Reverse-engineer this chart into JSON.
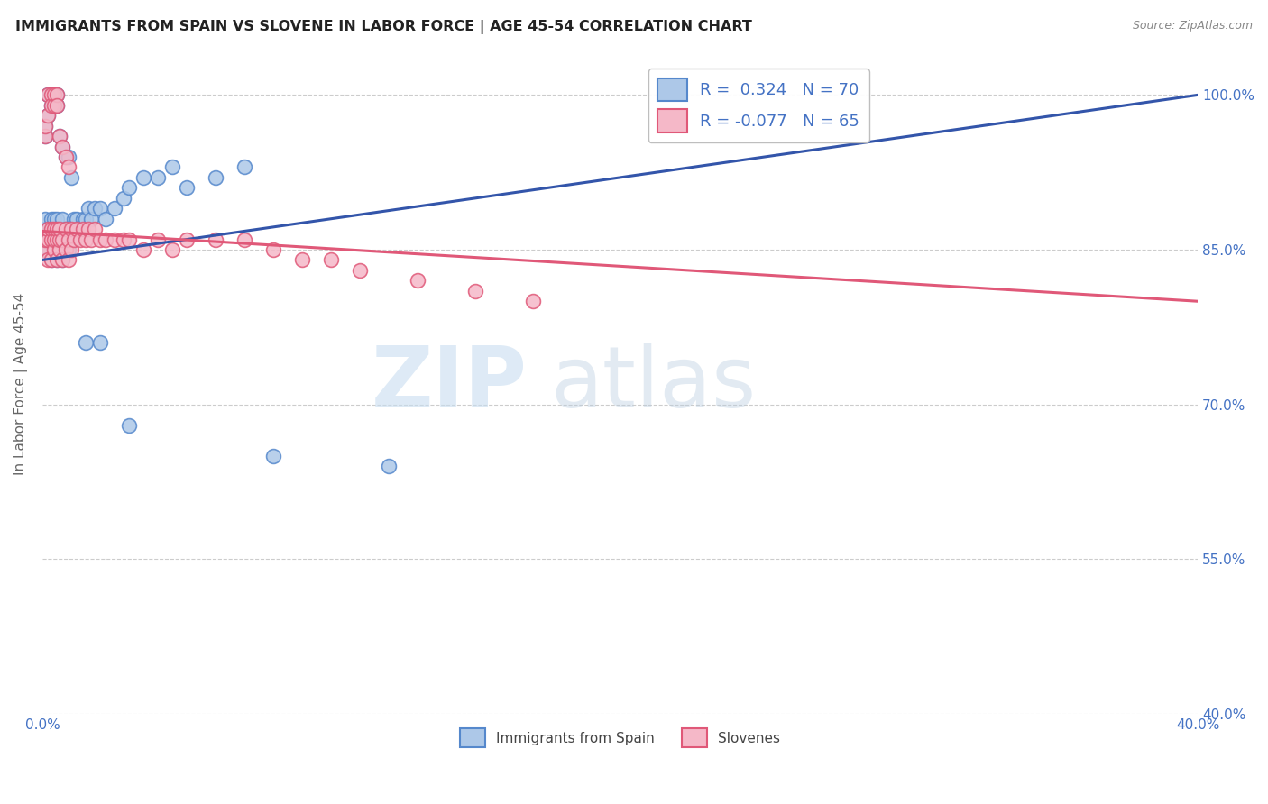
{
  "title": "IMMIGRANTS FROM SPAIN VS SLOVENE IN LABOR FORCE | AGE 45-54 CORRELATION CHART",
  "source": "Source: ZipAtlas.com",
  "ylabel": "In Labor Force | Age 45-54",
  "xlim": [
    0.0,
    0.4
  ],
  "ylim": [
    0.4,
    1.04
  ],
  "yticks": [
    0.4,
    0.55,
    0.7,
    0.85,
    1.0
  ],
  "yticklabels": [
    "40.0%",
    "55.0%",
    "70.0%",
    "85.0%",
    "100.0%"
  ],
  "grid_color": "#cccccc",
  "background_color": "#ffffff",
  "series1_color": "#adc8e8",
  "series2_color": "#f5b8c8",
  "series1_edge": "#5588cc",
  "series2_edge": "#e05878",
  "line1_color": "#3355aa",
  "line2_color": "#e05878",
  "legend_label1": "Immigrants from Spain",
  "legend_label2": "Slovenes",
  "R1": 0.324,
  "N1": 70,
  "R2": -0.077,
  "N2": 65,
  "watermark_zip": "ZIP",
  "watermark_atlas": "atlas",
  "spain_x": [
    0.001,
    0.001,
    0.001,
    0.001,
    0.002,
    0.002,
    0.002,
    0.003,
    0.003,
    0.003,
    0.003,
    0.004,
    0.004,
    0.004,
    0.005,
    0.005,
    0.005,
    0.005,
    0.006,
    0.006,
    0.006,
    0.007,
    0.007,
    0.007,
    0.008,
    0.008,
    0.009,
    0.009,
    0.01,
    0.01,
    0.011,
    0.012,
    0.012,
    0.013,
    0.014,
    0.015,
    0.016,
    0.017,
    0.018,
    0.02,
    0.022,
    0.025,
    0.028,
    0.03,
    0.035,
    0.04,
    0.045,
    0.05,
    0.06,
    0.07,
    0.001,
    0.001,
    0.002,
    0.002,
    0.003,
    0.003,
    0.004,
    0.004,
    0.005,
    0.005,
    0.006,
    0.007,
    0.008,
    0.009,
    0.01,
    0.015,
    0.02,
    0.03,
    0.08,
    0.12
  ],
  "spain_y": [
    0.85,
    0.86,
    0.87,
    0.88,
    0.85,
    0.86,
    0.87,
    0.84,
    0.86,
    0.87,
    0.88,
    0.85,
    0.87,
    0.88,
    0.84,
    0.86,
    0.87,
    0.88,
    0.85,
    0.86,
    0.87,
    0.84,
    0.86,
    0.88,
    0.86,
    0.87,
    0.85,
    0.87,
    0.86,
    0.87,
    0.88,
    0.87,
    0.88,
    0.87,
    0.88,
    0.88,
    0.89,
    0.88,
    0.89,
    0.89,
    0.88,
    0.89,
    0.9,
    0.91,
    0.92,
    0.92,
    0.93,
    0.91,
    0.92,
    0.93,
    0.96,
    0.97,
    0.98,
    1.0,
    1.0,
    0.99,
    1.0,
    0.99,
    1.0,
    0.99,
    0.96,
    0.95,
    0.94,
    0.94,
    0.92,
    0.76,
    0.76,
    0.68,
    0.65,
    0.64
  ],
  "slovene_x": [
    0.001,
    0.001,
    0.002,
    0.002,
    0.002,
    0.003,
    0.003,
    0.003,
    0.004,
    0.004,
    0.004,
    0.005,
    0.005,
    0.005,
    0.006,
    0.006,
    0.006,
    0.007,
    0.007,
    0.008,
    0.008,
    0.009,
    0.009,
    0.01,
    0.01,
    0.011,
    0.012,
    0.013,
    0.014,
    0.015,
    0.016,
    0.017,
    0.018,
    0.02,
    0.022,
    0.025,
    0.028,
    0.03,
    0.035,
    0.04,
    0.045,
    0.05,
    0.06,
    0.07,
    0.08,
    0.09,
    0.1,
    0.11,
    0.13,
    0.15,
    0.001,
    0.001,
    0.002,
    0.002,
    0.003,
    0.003,
    0.004,
    0.004,
    0.005,
    0.005,
    0.006,
    0.007,
    0.008,
    0.009,
    0.17
  ],
  "slovene_y": [
    0.85,
    0.86,
    0.84,
    0.86,
    0.87,
    0.84,
    0.86,
    0.87,
    0.85,
    0.86,
    0.87,
    0.84,
    0.86,
    0.87,
    0.85,
    0.86,
    0.87,
    0.84,
    0.86,
    0.85,
    0.87,
    0.84,
    0.86,
    0.85,
    0.87,
    0.86,
    0.87,
    0.86,
    0.87,
    0.86,
    0.87,
    0.86,
    0.87,
    0.86,
    0.86,
    0.86,
    0.86,
    0.86,
    0.85,
    0.86,
    0.85,
    0.86,
    0.86,
    0.86,
    0.85,
    0.84,
    0.84,
    0.83,
    0.82,
    0.81,
    0.96,
    0.97,
    0.98,
    1.0,
    1.0,
    0.99,
    1.0,
    0.99,
    1.0,
    0.99,
    0.96,
    0.95,
    0.94,
    0.93,
    0.8
  ],
  "line1_x0": 0.0,
  "line1_y0": 0.84,
  "line1_x1": 0.4,
  "line1_y1": 1.0,
  "line2_x0": 0.0,
  "line2_y0": 0.868,
  "line2_x1": 0.4,
  "line2_y1": 0.8
}
